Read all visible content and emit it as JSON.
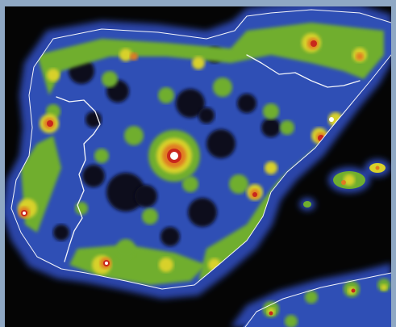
{
  "map": {
    "subject": "light-pollution-iberian-peninsula",
    "colors": {
      "frame": "#8fa8c4",
      "sea": "#050505",
      "halo": "#2b45a8",
      "dark_land": "#0c0c1a",
      "low": "#2f4fb5",
      "medium": "#6fae2e",
      "bright": "#d8d12a",
      "very_bright": "#e07a22",
      "extreme": "#c8271c",
      "core": "#ffffff",
      "borders": "#ffffff"
    },
    "levels": [
      "dark_land",
      "low",
      "medium",
      "bright",
      "very_bright",
      "extreme",
      "core"
    ]
  }
}
